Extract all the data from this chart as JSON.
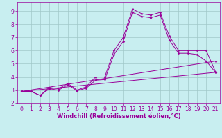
{
  "xlabel": "Windchill (Refroidissement éolien,°C)",
  "background_color": "#c8eef0",
  "grid_color": "#a0c8c8",
  "line_color": "#990099",
  "xlim": [
    -0.5,
    21.5
  ],
  "ylim": [
    2.0,
    9.7
  ],
  "xticks": [
    0,
    1,
    2,
    3,
    4,
    5,
    6,
    7,
    8,
    9,
    10,
    11,
    12,
    13,
    14,
    15,
    16,
    17,
    18,
    19,
    20,
    21
  ],
  "yticks": [
    2,
    3,
    4,
    5,
    6,
    7,
    8,
    9
  ],
  "line1_x": [
    0,
    1,
    2,
    3,
    4,
    5,
    6,
    7,
    8,
    9,
    10,
    11,
    12,
    13,
    14,
    15,
    16,
    17,
    18,
    19,
    20,
    21
  ],
  "line1_y": [
    2.9,
    2.9,
    2.6,
    3.2,
    3.1,
    3.5,
    3.0,
    3.25,
    4.0,
    4.0,
    6.0,
    7.0,
    9.15,
    8.8,
    8.7,
    8.9,
    7.1,
    6.0,
    6.0,
    6.0,
    6.0,
    4.4
  ],
  "line2_x": [
    0,
    1,
    2,
    3,
    4,
    5,
    6,
    7,
    8,
    9,
    10,
    11,
    12,
    13,
    14,
    15,
    16,
    17,
    18,
    19,
    20,
    21
  ],
  "line2_y": [
    2.9,
    2.9,
    2.6,
    3.1,
    3.0,
    3.4,
    2.95,
    3.15,
    3.75,
    3.8,
    5.7,
    6.7,
    8.9,
    8.6,
    8.5,
    8.7,
    6.8,
    5.8,
    5.8,
    5.7,
    5.2,
    4.35
  ],
  "line3_x": [
    0,
    21
  ],
  "line3_y": [
    2.9,
    5.2
  ],
  "line4_x": [
    0,
    21
  ],
  "line4_y": [
    2.9,
    4.35
  ],
  "xlabel_fontsize": 6,
  "tick_fontsize": 5.5,
  "marker": "D",
  "markersize": 1.5,
  "linewidth": 0.7
}
